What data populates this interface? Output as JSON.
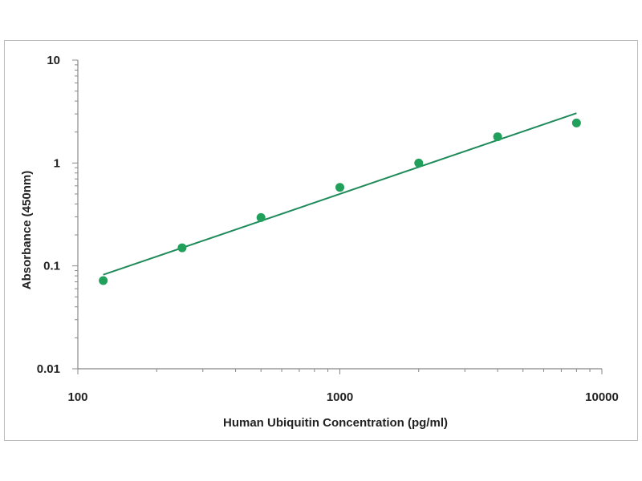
{
  "chart_data": {
    "type": "scatter",
    "title": "",
    "xlabel": "Human Ubiquitin Concentration (pg/ml)",
    "ylabel": "Absorbance (450nm)",
    "xscale": "log",
    "yscale": "log",
    "xlim": [
      100,
      10000
    ],
    "ylim": [
      0.01,
      10
    ],
    "x_tick_labels": [
      "100",
      "1000",
      "10000"
    ],
    "y_tick_labels": [
      "10",
      "1",
      "0.1",
      "0.01"
    ],
    "grid": false,
    "legend": "none",
    "series": [
      {
        "x": [
          125,
          250,
          500,
          1000,
          2000,
          4000,
          8000
        ],
        "y": [
          0.072,
          0.15,
          0.295,
          0.58,
          1.0,
          1.8,
          2.45
        ],
        "marker_color": "#20a05a"
      }
    ],
    "fit_line": {
      "x": [
        125,
        8000
      ],
      "y": [
        0.082,
        3.05
      ],
      "color": "#1f8a5a"
    }
  }
}
